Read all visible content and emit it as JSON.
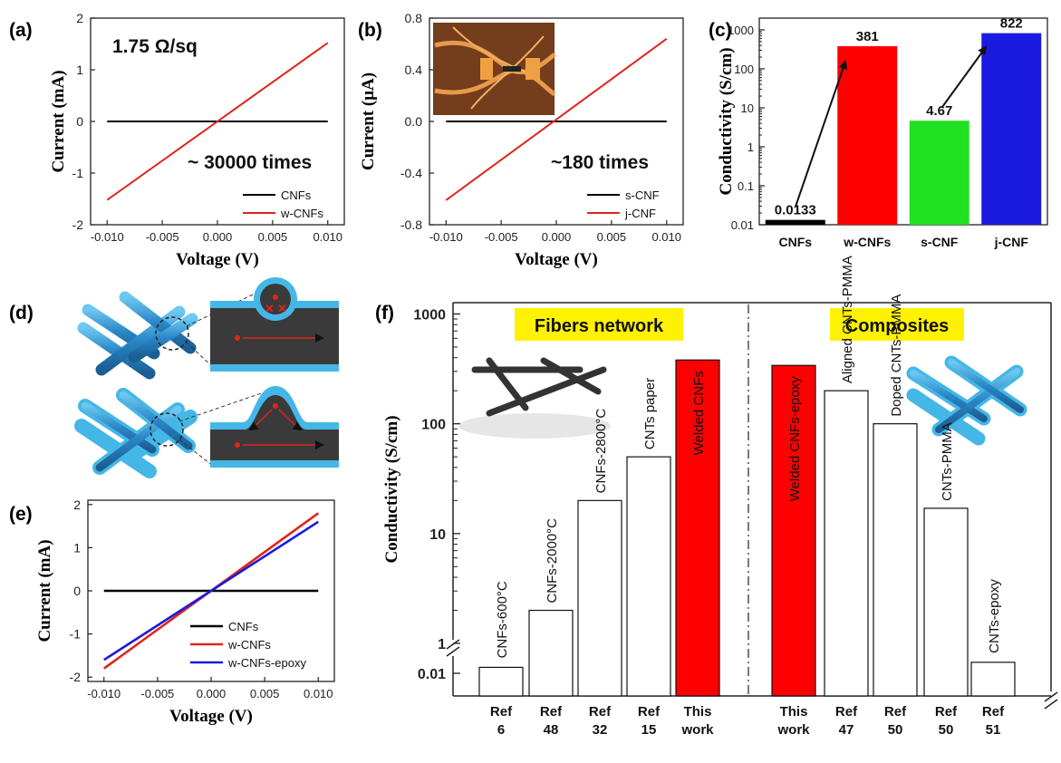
{
  "colors": {
    "black": "#000000",
    "red": "#e0241b",
    "blue": "#1a1adf",
    "green": "#22e022",
    "cyan": "#45b7e6",
    "yellow": "#fff200",
    "fiberdark": "#1f6fa8"
  },
  "panel_labels": {
    "a": "(a)",
    "b": "(b)",
    "c": "(c)",
    "d": "(d)",
    "e": "(e)",
    "f": "(f)"
  },
  "chart_data": [
    {
      "id": "a",
      "type": "line",
      "xlabel": "Voltage (V)",
      "ylabel": "Current (mA)",
      "xlim": [
        -0.0115,
        0.0115
      ],
      "ylim": [
        -2,
        2
      ],
      "xticks": [
        -0.01,
        -0.005,
        0.0,
        0.005,
        0.01
      ],
      "xtick_labels": [
        "-0.010",
        "-0.005",
        "0.000",
        "0.005",
        "0.010"
      ],
      "yticks": [
        -2,
        -1,
        0,
        1,
        2
      ],
      "ytick_labels": [
        "-2",
        "-1",
        "0",
        "1",
        "2"
      ],
      "series": [
        {
          "name": "CNFs",
          "color": "#000000",
          "x": [
            -0.01,
            0.01
          ],
          "y": [
            0.0,
            0.0
          ]
        },
        {
          "name": "w-CNFs",
          "color": "#e0241b",
          "x": [
            -0.01,
            0.01
          ],
          "y": [
            -1.52,
            1.52
          ]
        }
      ],
      "annotations": [
        "1.75 Ω/sq",
        "~ 30000 times"
      ]
    },
    {
      "id": "b",
      "type": "line",
      "xlabel": "Voltage (V)",
      "ylabel": "Current (μA)",
      "xlim": [
        -0.0115,
        0.0115
      ],
      "ylim": [
        -0.8,
        0.8
      ],
      "xticks": [
        -0.01,
        -0.005,
        0.0,
        0.005,
        0.01
      ],
      "xtick_labels": [
        "-0.010",
        "-0.005",
        "0.000",
        "0.005",
        "0.010"
      ],
      "yticks": [
        -0.8,
        -0.4,
        0.0,
        0.4,
        0.8
      ],
      "ytick_labels": [
        "-0.8",
        "-0.4",
        "0.0",
        "0.4",
        "0.8"
      ],
      "series": [
        {
          "name": "s-CNF",
          "color": "#000000",
          "x": [
            -0.01,
            0.01
          ],
          "y": [
            0.0,
            0.0
          ]
        },
        {
          "name": "j-CNF",
          "color": "#e0241b",
          "x": [
            -0.01,
            0.01
          ],
          "y": [
            -0.61,
            0.64
          ]
        }
      ],
      "annotations": [
        "~180 times"
      ]
    },
    {
      "id": "c",
      "type": "bar",
      "yscale": "log",
      "xlabel": "",
      "ylabel": "Conductivity (S/cm)",
      "ylim": [
        0.01,
        2000
      ],
      "yticks": [
        0.01,
        0.1,
        1,
        10,
        100,
        1000
      ],
      "ytick_labels": [
        "0.01",
        "0.1",
        "1",
        "10",
        "100",
        "1000"
      ],
      "categories": [
        "CNFs",
        "w-CNFs",
        "s-CNF",
        "j-CNF"
      ],
      "values": [
        0.0133,
        381,
        4.67,
        822
      ],
      "value_labels": [
        "0.0133",
        "381",
        "4.67",
        "822"
      ],
      "bar_colors": [
        "#000000",
        "#ff0000",
        "#22e022",
        "#1a1adf"
      ]
    },
    {
      "id": "e",
      "type": "line",
      "xlabel": "Voltage (V)",
      "ylabel": "Current (mA)",
      "xlim": [
        -0.0115,
        0.0115
      ],
      "ylim": [
        -2.1,
        2.1
      ],
      "xticks": [
        -0.01,
        -0.005,
        0.0,
        0.005,
        0.01
      ],
      "xtick_labels": [
        "-0.010",
        "-0.005",
        "0.000",
        "0.005",
        "0.010"
      ],
      "yticks": [
        -2,
        -1,
        0,
        1,
        2
      ],
      "ytick_labels": [
        "-2",
        "-1",
        "0",
        "1",
        "2"
      ],
      "series": [
        {
          "name": "CNFs",
          "color": "#000000",
          "x": [
            -0.01,
            0.01
          ],
          "y": [
            0.0,
            0.0
          ]
        },
        {
          "name": "w-CNFs",
          "color": "#e0241b",
          "x": [
            -0.01,
            0.01
          ],
          "y": [
            -1.8,
            1.8
          ]
        },
        {
          "name": "w-CNFs-epoxy",
          "color": "#1a1adf",
          "x": [
            -0.01,
            0.01
          ],
          "y": [
            -1.6,
            1.6
          ]
        }
      ]
    },
    {
      "id": "f",
      "type": "bar",
      "yscale": "log-broken",
      "xlabel": "",
      "ylabel": "Conductivity (S/cm)",
      "ylim": [
        0.01,
        2000
      ],
      "yticks": [
        0.01,
        1,
        10,
        100,
        1000
      ],
      "ytick_labels": [
        "0.01",
        "1",
        "10",
        "100",
        "1000"
      ],
      "groups": [
        "Fibers network",
        "Composites"
      ],
      "bars": [
        {
          "label": "CNFs-600°C",
          "ref": [
            "Ref",
            "6"
          ],
          "value": 0.012,
          "highlight": false,
          "group": 0
        },
        {
          "label": "CNFs-2000°C",
          "ref": [
            "Ref",
            "48"
          ],
          "value": 2,
          "highlight": false,
          "group": 0
        },
        {
          "label": "CNFs-2800°C",
          "ref": [
            "Ref",
            "32"
          ],
          "value": 20,
          "highlight": false,
          "group": 0
        },
        {
          "label": "CNTs paper",
          "ref": [
            "Ref",
            "15"
          ],
          "value": 50,
          "highlight": false,
          "group": 0
        },
        {
          "label": "Welded CNFs",
          "ref": [
            "This",
            "work"
          ],
          "value": 381,
          "highlight": true,
          "group": 0
        },
        {
          "label": "Welded CNFs-epoxy",
          "ref": [
            "This",
            "work"
          ],
          "value": 340,
          "highlight": true,
          "group": 1
        },
        {
          "label": "Aligned CNTs-PMMA",
          "ref": [
            "Ref",
            "47"
          ],
          "value": 200,
          "highlight": false,
          "group": 1
        },
        {
          "label": "Doped CNTs-PMMA",
          "ref": [
            "Ref",
            "50"
          ],
          "value": 100,
          "highlight": false,
          "group": 1
        },
        {
          "label": "CNTs-PMMA",
          "ref": [
            "Ref",
            "50"
          ],
          "value": 17,
          "highlight": false,
          "group": 1
        },
        {
          "label": "CNTs-epoxy",
          "ref": [
            "Ref",
            "51"
          ],
          "value": 0.014,
          "highlight": false,
          "group": 1
        }
      ]
    }
  ]
}
